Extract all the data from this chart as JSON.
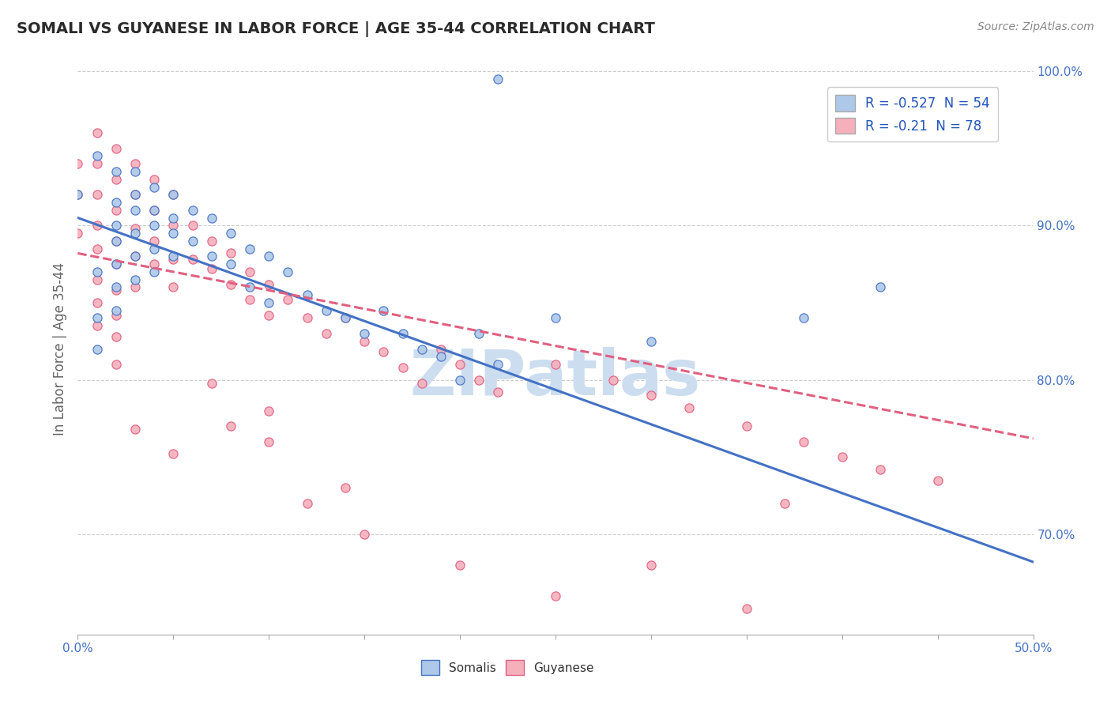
{
  "title": "SOMALI VS GUYANESE IN LABOR FORCE | AGE 35-44 CORRELATION CHART",
  "source_text": "Source: ZipAtlas.com",
  "ylabel": "In Labor Force | Age 35-44",
  "xlim": [
    0.0,
    0.5
  ],
  "ylim": [
    0.635,
    1.005
  ],
  "R_somali": -0.527,
  "N_somali": 54,
  "R_guyanese": -0.21,
  "N_guyanese": 78,
  "somali_color": "#adc8e8",
  "guyanese_color": "#f5b0bc",
  "somali_line_color": "#4472c4",
  "guyanese_line_color": "#e06080",
  "legend_text_color": "#2255bb",
  "watermark": "ZIPatlas",
  "watermark_color": "#ccddf0",
  "background_color": "#ffffff",
  "grid_color": "#c8c8c8",
  "somali_x": [
    0.0,
    0.01,
    0.01,
    0.01,
    0.01,
    0.02,
    0.02,
    0.02,
    0.02,
    0.02,
    0.02,
    0.02,
    0.03,
    0.03,
    0.03,
    0.03,
    0.03,
    0.03,
    0.04,
    0.04,
    0.04,
    0.04,
    0.04,
    0.05,
    0.05,
    0.05,
    0.05,
    0.06,
    0.06,
    0.07,
    0.07,
    0.08,
    0.08,
    0.09,
    0.09,
    0.1,
    0.1,
    0.11,
    0.12,
    0.13,
    0.14,
    0.15,
    0.16,
    0.17,
    0.18,
    0.19,
    0.2,
    0.21,
    0.22,
    0.25,
    0.3,
    0.38,
    0.42,
    0.22
  ],
  "somali_y": [
    0.92,
    0.945,
    0.87,
    0.84,
    0.82,
    0.935,
    0.915,
    0.9,
    0.89,
    0.875,
    0.86,
    0.845,
    0.935,
    0.92,
    0.91,
    0.895,
    0.88,
    0.865,
    0.925,
    0.91,
    0.9,
    0.885,
    0.87,
    0.92,
    0.905,
    0.895,
    0.88,
    0.91,
    0.89,
    0.905,
    0.88,
    0.895,
    0.875,
    0.885,
    0.86,
    0.88,
    0.85,
    0.87,
    0.855,
    0.845,
    0.84,
    0.83,
    0.845,
    0.83,
    0.82,
    0.815,
    0.8,
    0.83,
    0.81,
    0.84,
    0.825,
    0.84,
    0.86,
    0.995
  ],
  "guyanese_x": [
    0.0,
    0.0,
    0.0,
    0.01,
    0.01,
    0.01,
    0.01,
    0.01,
    0.01,
    0.01,
    0.01,
    0.02,
    0.02,
    0.02,
    0.02,
    0.02,
    0.02,
    0.02,
    0.02,
    0.02,
    0.03,
    0.03,
    0.03,
    0.03,
    0.03,
    0.04,
    0.04,
    0.04,
    0.04,
    0.05,
    0.05,
    0.05,
    0.05,
    0.06,
    0.06,
    0.07,
    0.07,
    0.08,
    0.08,
    0.09,
    0.09,
    0.1,
    0.1,
    0.11,
    0.12,
    0.13,
    0.14,
    0.15,
    0.16,
    0.17,
    0.18,
    0.19,
    0.2,
    0.21,
    0.22,
    0.25,
    0.28,
    0.3,
    0.32,
    0.35,
    0.38,
    0.4,
    0.42,
    0.45,
    0.03,
    0.05,
    0.08,
    0.1,
    0.12,
    0.15,
    0.2,
    0.25,
    0.3,
    0.35,
    0.07,
    0.1,
    0.14,
    0.37
  ],
  "guyanese_y": [
    0.94,
    0.92,
    0.895,
    0.96,
    0.94,
    0.92,
    0.9,
    0.885,
    0.865,
    0.85,
    0.835,
    0.95,
    0.93,
    0.91,
    0.89,
    0.875,
    0.858,
    0.842,
    0.828,
    0.81,
    0.94,
    0.92,
    0.898,
    0.88,
    0.86,
    0.93,
    0.91,
    0.89,
    0.875,
    0.92,
    0.9,
    0.878,
    0.86,
    0.9,
    0.878,
    0.89,
    0.872,
    0.882,
    0.862,
    0.87,
    0.852,
    0.862,
    0.842,
    0.852,
    0.84,
    0.83,
    0.84,
    0.825,
    0.818,
    0.808,
    0.798,
    0.82,
    0.81,
    0.8,
    0.792,
    0.81,
    0.8,
    0.79,
    0.782,
    0.77,
    0.76,
    0.75,
    0.742,
    0.735,
    0.768,
    0.752,
    0.77,
    0.76,
    0.72,
    0.7,
    0.68,
    0.66,
    0.68,
    0.652,
    0.798,
    0.78,
    0.73,
    0.72
  ],
  "somali_line_x0": 0.0,
  "somali_line_y0": 0.905,
  "somali_line_x1": 0.5,
  "somali_line_y1": 0.682,
  "guyanese_line_x0": 0.0,
  "guyanese_line_y0": 0.882,
  "guyanese_line_x1": 0.5,
  "guyanese_line_y1": 0.762
}
